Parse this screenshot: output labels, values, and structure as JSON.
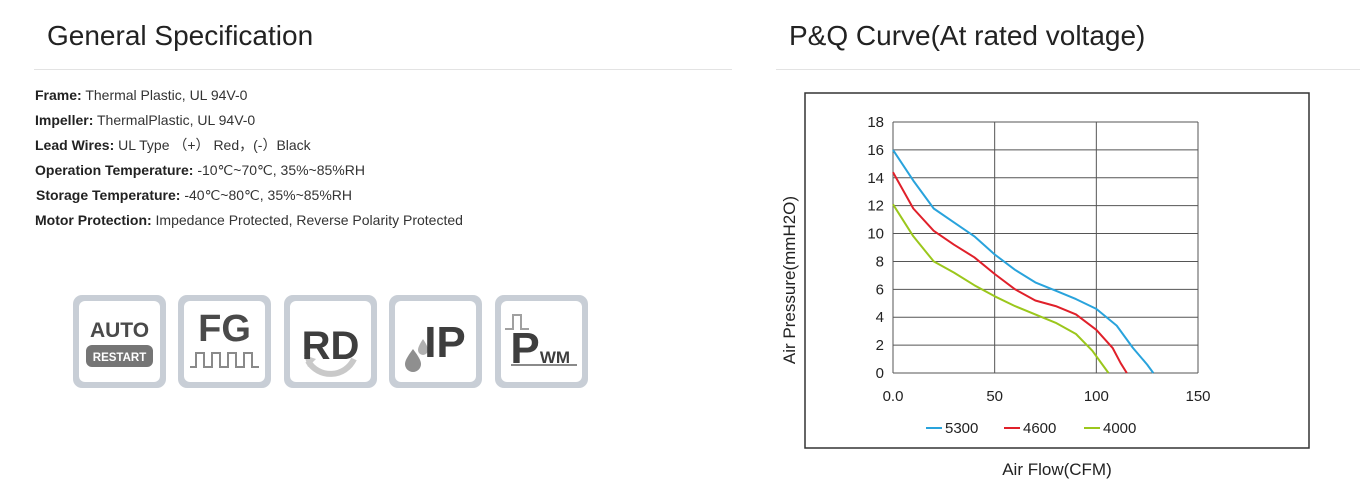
{
  "left_section": {
    "title": "General Specification",
    "specs": [
      {
        "label": "Frame:",
        "value": " Thermal Plastic, UL 94V-0"
      },
      {
        "label": "Impeller:",
        "value": " ThermalPlastic, UL 94V-0"
      },
      {
        "label": "Lead Wires:",
        "value": " UL Type （+） Red，(-）Black"
      },
      {
        "label": "Operation Temperature:",
        "value": " -10℃~70℃, 35%~85%RH"
      },
      {
        "label": "Storage Temperature:",
        "value": " -40℃~80℃, 35%~85%RH"
      },
      {
        "label": "Motor Protection:",
        "value": " Impedance Protected, Reverse Polarity Protected"
      }
    ],
    "badges": [
      {
        "icon": "auto-restart-icon",
        "text": "AUTO",
        "subtext": "RESTART"
      },
      {
        "icon": "fg-signal-icon",
        "text": "FG"
      },
      {
        "icon": "rd-rotation-detect-icon",
        "text": "RD"
      },
      {
        "icon": "ip-protection-icon",
        "text": "IP"
      },
      {
        "icon": "pwm-icon",
        "text": "P",
        "subtext": "WM"
      }
    ]
  },
  "right_section": {
    "title": "P&Q Curve(At rated voltage)"
  },
  "chart_data": {
    "type": "line",
    "xlabel": "Air Flow(CFM)",
    "ylabel": "Air Pressure(mmH2O)",
    "xlim": [
      0,
      150
    ],
    "ylim": [
      0,
      18
    ],
    "x_ticks": [
      "0.0",
      "50",
      "100",
      "150"
    ],
    "y_ticks": [
      "0",
      "2",
      "4",
      "6",
      "8",
      "10",
      "12",
      "14",
      "16",
      "18"
    ],
    "grid": true,
    "legend_position": "bottom",
    "series": [
      {
        "name": "5300",
        "color": "#29a3dc",
        "points": [
          [
            0,
            16
          ],
          [
            10,
            13.8
          ],
          [
            20,
            11.8
          ],
          [
            30,
            10.8
          ],
          [
            40,
            9.8
          ],
          [
            50,
            8.5
          ],
          [
            60,
            7.4
          ],
          [
            70,
            6.5
          ],
          [
            80,
            5.9
          ],
          [
            90,
            5.3
          ],
          [
            100,
            4.6
          ],
          [
            110,
            3.4
          ],
          [
            118,
            1.8
          ],
          [
            125,
            0.6
          ],
          [
            128,
            0
          ]
        ]
      },
      {
        "name": "4600",
        "color": "#e0202a",
        "points": [
          [
            0,
            14.4
          ],
          [
            10,
            11.8
          ],
          [
            20,
            10.2
          ],
          [
            30,
            9.2
          ],
          [
            40,
            8.3
          ],
          [
            50,
            7.1
          ],
          [
            60,
            6.0
          ],
          [
            70,
            5.2
          ],
          [
            80,
            4.8
          ],
          [
            90,
            4.2
          ],
          [
            100,
            3.1
          ],
          [
            108,
            1.8
          ],
          [
            112,
            0.7
          ],
          [
            115,
            0
          ]
        ]
      },
      {
        "name": "4000",
        "color": "#9bc71c",
        "points": [
          [
            0,
            12.1
          ],
          [
            10,
            9.8
          ],
          [
            20,
            8.0
          ],
          [
            30,
            7.2
          ],
          [
            40,
            6.3
          ],
          [
            50,
            5.5
          ],
          [
            60,
            4.8
          ],
          [
            70,
            4.2
          ],
          [
            80,
            3.6
          ],
          [
            90,
            2.8
          ],
          [
            98,
            1.6
          ],
          [
            103,
            0.6
          ],
          [
            106,
            0
          ]
        ]
      }
    ]
  }
}
